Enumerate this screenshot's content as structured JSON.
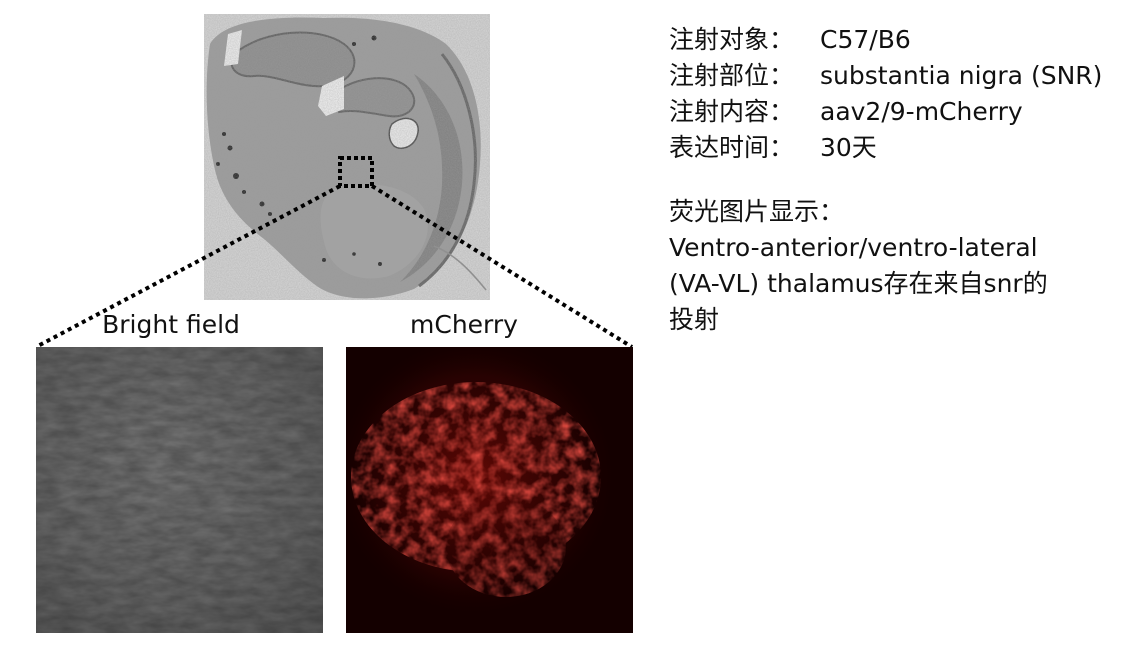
{
  "panels": {
    "bright_field_label": "Bright field",
    "mcherry_label": "mCherry"
  },
  "info": {
    "rows": [
      {
        "key": "注射对象：",
        "value": "C57/B6"
      },
      {
        "key": "注射部位：",
        "value": "substantia nigra (SNR)"
      },
      {
        "key": "注射内容：",
        "value": "aav2/9-mCherry"
      },
      {
        "key": "表达时间：",
        "value": "30天"
      }
    ]
  },
  "fluorescence": {
    "heading": "荧光图片显示：",
    "line1": "Ventro-anterior/ventro-lateral",
    "line2": "(VA-VL) thalamus存在来自snr的",
    "line3": "投射"
  },
  "colors": {
    "mcherry_signal": "#c81a14",
    "dotted_line": "#000000"
  }
}
